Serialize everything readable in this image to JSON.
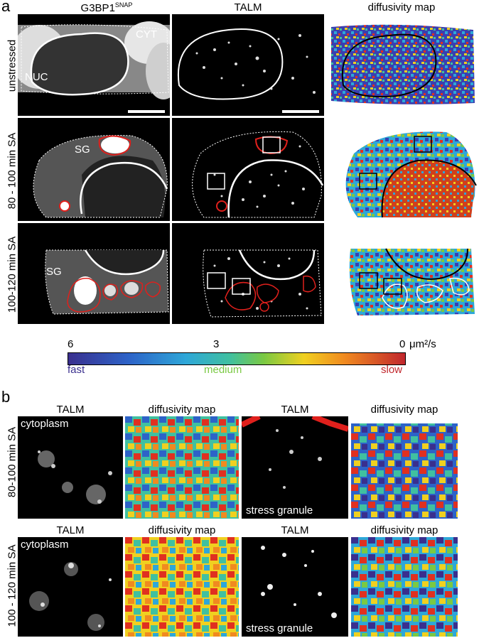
{
  "panel_a": {
    "letter": "a",
    "col_titles": [
      "G3BP1",
      "TALM",
      "diffusivity map"
    ],
    "col_title_sup": "SNAP",
    "row_labels": [
      "unstressed",
      "80 - 100 min SA",
      "100-120 min SA"
    ],
    "labels": {
      "cyt": "CYT",
      "nuc": "NUC",
      "sg": "SG"
    }
  },
  "colorbar": {
    "left_value": "6",
    "mid_value": "3",
    "right_value": "0",
    "unit": "μm²/s",
    "fast": "fast",
    "medium": "medium",
    "slow": "slow",
    "colors": {
      "fast": "#3a2f8e",
      "medium": "#7ac943",
      "slow": "#c1272d"
    }
  },
  "panel_b": {
    "letter": "b",
    "row_labels": [
      "80-100 min SA",
      "100 - 120 min SA"
    ],
    "talm": "TALM",
    "diff": "diffusivity map",
    "cytoplasm": "cytoplasm",
    "stress_granule": "stress granule"
  }
}
